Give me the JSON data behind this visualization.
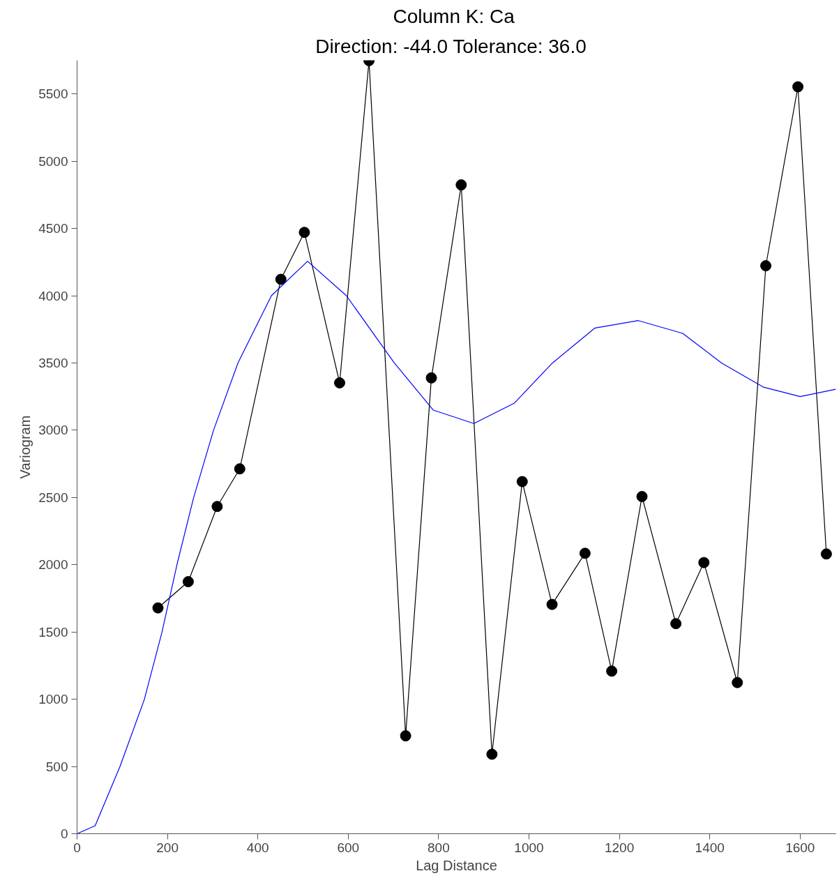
{
  "chart_data": {
    "type": "line",
    "title": "Column K:  Ca",
    "subtitle": "Direction: -44.0   Tolerance: 36.0",
    "xlabel": "Lag Distance",
    "ylabel": "Variogram",
    "xlim": [
      0,
      1679
    ],
    "ylim": [
      0,
      5750
    ],
    "xticks": [
      0,
      200,
      400,
      600,
      800,
      1000,
      1200,
      1400,
      1600
    ],
    "yticks": [
      0,
      500,
      1000,
      1500,
      2000,
      2500,
      3000,
      3500,
      4000,
      4500,
      5000,
      5500
    ],
    "grid": false,
    "series": [
      {
        "color": "#000000",
        "marker": "circle",
        "line_style": "solid",
        "x": [
          179,
          246,
          310,
          360,
          451,
          503,
          581,
          646,
          727,
          784,
          850,
          918,
          985,
          1051,
          1124,
          1183,
          1250,
          1325,
          1387,
          1461,
          1524,
          1595,
          1658
        ],
        "values": [
          1679,
          1874,
          2433,
          2713,
          4122,
          4471,
          3352,
          5748,
          728,
          3389,
          4824,
          591,
          2618,
          1705,
          2085,
          1209,
          2507,
          1562,
          2016,
          1124,
          4223,
          5553,
          2080
        ]
      },
      {
        "color": "#0000ff",
        "marker": "none",
        "line_style": "solid",
        "x": [
          0,
          40,
          95,
          149,
          188,
          221,
          258,
          302,
          356,
          430,
          510,
          596,
          702,
          788,
          878,
          967,
          1052,
          1146,
          1242,
          1340,
          1426,
          1519,
          1600,
          1679
        ],
        "values": [
          0,
          60,
          500,
          1000,
          1500,
          2000,
          2500,
          3000,
          3500,
          4000,
          4256,
          4000,
          3500,
          3150,
          3050,
          3200,
          3500,
          3760,
          3815,
          3720,
          3500,
          3320,
          3250,
          3305
        ]
      }
    ]
  }
}
